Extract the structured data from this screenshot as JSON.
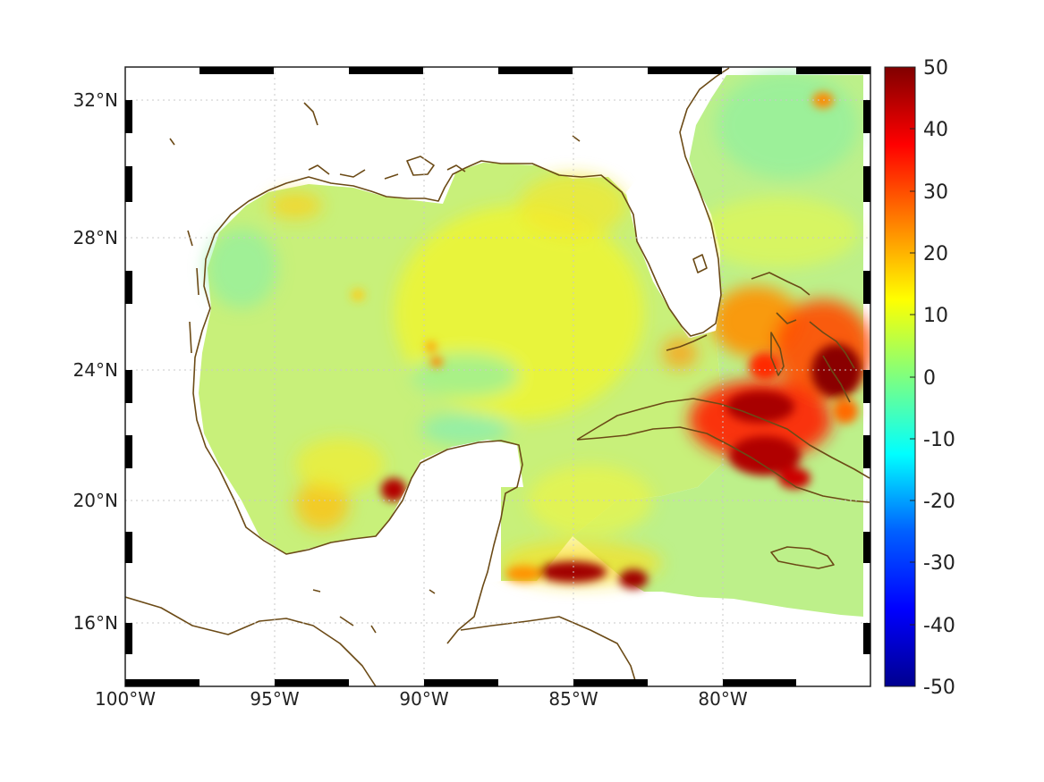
{
  "map": {
    "lon_ticks": [
      "100°W",
      "95°W",
      "90°W",
      "85°W",
      "80°W"
    ],
    "lat_ticks": [
      "32°N",
      "28°N",
      "24°N",
      "20°N",
      "16°N"
    ],
    "lon_range": [
      -100,
      -75
    ],
    "lat_range": [
      14.2,
      32.9
    ],
    "grid": true,
    "frame": "black-and-white dashed border",
    "coastline_color": "#6b4a16",
    "water_color": "#ffffff",
    "hotspots": [
      {
        "name": "northeast of Cuba / central Bahamas",
        "value": 50
      },
      {
        "name": "north coast of central Cuba",
        "value": 50
      },
      {
        "name": "south of Cuba near Isla de la Juventud",
        "value": 45
      },
      {
        "name": "Gulf of Honduras / north of Honduras",
        "value": 50
      },
      {
        "name": "Bay of Campeche near Ciudad del Carmen",
        "value": 50
      },
      {
        "name": "northwest Bahamas / Grand Bahama",
        "value": 30
      },
      {
        "name": "southwest Gulf of Mexico",
        "value": 20
      },
      {
        "name": "Georgia offshore",
        "value": 25
      }
    ]
  },
  "colorbar": {
    "ticks": [
      "50",
      "40",
      "30",
      "20",
      "10",
      "0",
      "-10",
      "-20",
      "-30",
      "-40",
      "-50"
    ],
    "min": -50,
    "max": 50,
    "colormap": "jet",
    "colors": [
      "#00008f",
      "#0000ff",
      "#0080ff",
      "#00ffff",
      "#80ff80",
      "#ffff00",
      "#ff8000",
      "#ff0000",
      "#800000"
    ]
  }
}
